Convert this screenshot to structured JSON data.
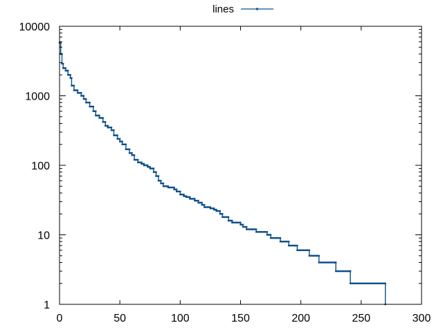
{
  "chart_data": {
    "type": "line",
    "title": "",
    "xlabel": "",
    "ylabel": "",
    "xlim": [
      0,
      300
    ],
    "ylim": [
      1,
      10000
    ],
    "y_scale": "log",
    "grid": false,
    "legend_position": "top-center",
    "x_ticks": [
      "0",
      "50",
      "100",
      "150",
      "200",
      "250",
      "300"
    ],
    "y_ticks": [
      "1",
      "10",
      "100",
      "1000",
      "10000"
    ],
    "series": [
      {
        "name": "lines",
        "color": "#0b4f8a",
        "marker": "point",
        "points": [
          [
            0,
            5800
          ],
          [
            1,
            4000
          ],
          [
            2,
            2900
          ],
          [
            3,
            2500
          ],
          [
            5,
            2300
          ],
          [
            7,
            2000
          ],
          [
            9,
            1800
          ],
          [
            10,
            1400
          ],
          [
            12,
            1200
          ],
          [
            15,
            1100
          ],
          [
            18,
            1000
          ],
          [
            20,
            900
          ],
          [
            22,
            800
          ],
          [
            25,
            700
          ],
          [
            28,
            600
          ],
          [
            30,
            520
          ],
          [
            33,
            480
          ],
          [
            36,
            420
          ],
          [
            38,
            370
          ],
          [
            40,
            350
          ],
          [
            43,
            320
          ],
          [
            45,
            270
          ],
          [
            48,
            240
          ],
          [
            50,
            220
          ],
          [
            52,
            200
          ],
          [
            55,
            170
          ],
          [
            58,
            150
          ],
          [
            60,
            140
          ],
          [
            62,
            120
          ],
          [
            65,
            110
          ],
          [
            68,
            105
          ],
          [
            70,
            100
          ],
          [
            73,
            95
          ],
          [
            75,
            90
          ],
          [
            78,
            80
          ],
          [
            80,
            70
          ],
          [
            82,
            60
          ],
          [
            84,
            55
          ],
          [
            86,
            50
          ],
          [
            90,
            48
          ],
          [
            95,
            45
          ],
          [
            97,
            42
          ],
          [
            100,
            38
          ],
          [
            103,
            36
          ],
          [
            105,
            35
          ],
          [
            108,
            33
          ],
          [
            112,
            31
          ],
          [
            115,
            29
          ],
          [
            118,
            27
          ],
          [
            120,
            25
          ],
          [
            125,
            24
          ],
          [
            128,
            23
          ],
          [
            130,
            22
          ],
          [
            133,
            20
          ],
          [
            135,
            18
          ],
          [
            140,
            16
          ],
          [
            143,
            15
          ],
          [
            147,
            15
          ],
          [
            150,
            14
          ],
          [
            152,
            13
          ],
          [
            155,
            12
          ],
          [
            160,
            12
          ],
          [
            163,
            11
          ],
          [
            170,
            11
          ],
          [
            172,
            10
          ],
          [
            175,
            9
          ],
          [
            180,
            9
          ],
          [
            183,
            8
          ],
          [
            188,
            8
          ],
          [
            190,
            7
          ],
          [
            195,
            7
          ],
          [
            197,
            6
          ],
          [
            205,
            6
          ],
          [
            207,
            5
          ],
          [
            213,
            5
          ],
          [
            215,
            4
          ],
          [
            228,
            4
          ],
          [
            229,
            3
          ],
          [
            240,
            3
          ],
          [
            241,
            2
          ],
          [
            269,
            2
          ],
          [
            270,
            1
          ]
        ]
      }
    ]
  }
}
